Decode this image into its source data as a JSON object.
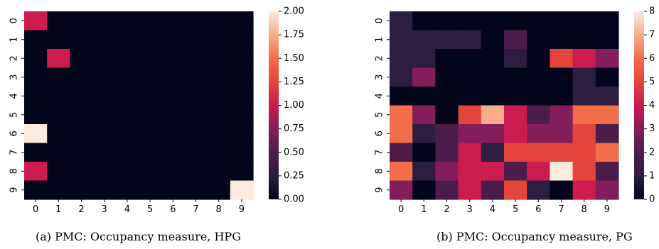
{
  "chart_data": [
    {
      "type": "heatmap",
      "caption": "(a) PMC: Occupancy measure, HPG",
      "x_ticks": [
        "0",
        "1",
        "2",
        "3",
        "4",
        "5",
        "6",
        "7",
        "8",
        "9"
      ],
      "y_ticks": [
        "0",
        "1",
        "2",
        "3",
        "4",
        "5",
        "6",
        "7",
        "8",
        "9"
      ],
      "colorbar": {
        "min": 0,
        "max": 2,
        "ticks": [
          "0.00",
          "0.25",
          "0.50",
          "0.75",
          "1.00",
          "1.25",
          "1.50",
          "1.75",
          "2.00"
        ]
      },
      "values": [
        [
          1,
          0,
          0,
          0,
          0,
          0,
          0,
          0,
          0,
          0
        ],
        [
          0,
          0,
          0,
          0,
          0,
          0,
          0,
          0,
          0,
          0
        ],
        [
          0,
          1,
          0,
          0,
          0,
          0,
          0,
          0,
          0,
          0
        ],
        [
          0,
          0,
          0,
          0,
          0,
          0,
          0,
          0,
          0,
          0
        ],
        [
          0,
          0,
          0,
          0,
          0,
          0,
          0,
          0,
          0,
          0
        ],
        [
          0,
          0,
          0,
          0,
          0,
          0,
          0,
          0,
          0,
          0
        ],
        [
          2,
          0,
          0,
          0,
          0,
          0,
          0,
          0,
          0,
          0
        ],
        [
          0,
          0,
          0,
          0,
          0,
          0,
          0,
          0,
          0,
          0
        ],
        [
          1,
          0,
          0,
          0,
          0,
          0,
          0,
          0,
          0,
          0
        ],
        [
          0,
          0,
          0,
          0,
          0,
          0,
          0,
          0,
          0,
          2
        ]
      ]
    },
    {
      "type": "heatmap",
      "caption": "(b) PMC: Occupancy measure, PG",
      "x_ticks": [
        "0",
        "1",
        "2",
        "3",
        "4",
        "5",
        "6",
        "7",
        "8",
        "9"
      ],
      "y_ticks": [
        "0",
        "1",
        "2",
        "3",
        "4",
        "5",
        "6",
        "7",
        "8",
        "9"
      ],
      "colorbar": {
        "min": 0,
        "max": 8,
        "ticks": [
          "0",
          "1",
          "2",
          "3",
          "4",
          "5",
          "6",
          "7",
          "8"
        ]
      },
      "values": [
        [
          1,
          0,
          0,
          0,
          0,
          0,
          0,
          0,
          0,
          0
        ],
        [
          1,
          1,
          1,
          1,
          0,
          2,
          0,
          0,
          0,
          0
        ],
        [
          1,
          1,
          0,
          0,
          0,
          1,
          0,
          5,
          4,
          3
        ],
        [
          1,
          3,
          0,
          0,
          0,
          0,
          0,
          0,
          1,
          0
        ],
        [
          0,
          0,
          0,
          0,
          0,
          0,
          0,
          0,
          1,
          1
        ],
        [
          6,
          3,
          0,
          5,
          7,
          4,
          2,
          3,
          6,
          6
        ],
        [
          6,
          1,
          2,
          3,
          3,
          4,
          3,
          3,
          5,
          2
        ],
        [
          2,
          0,
          2,
          4,
          1,
          5,
          5,
          5,
          5,
          6
        ],
        [
          6,
          1,
          3,
          4,
          4,
          2,
          4,
          8,
          5,
          2
        ],
        [
          3,
          0,
          2,
          4,
          2,
          5,
          1,
          0,
          4,
          3
        ]
      ]
    }
  ]
}
